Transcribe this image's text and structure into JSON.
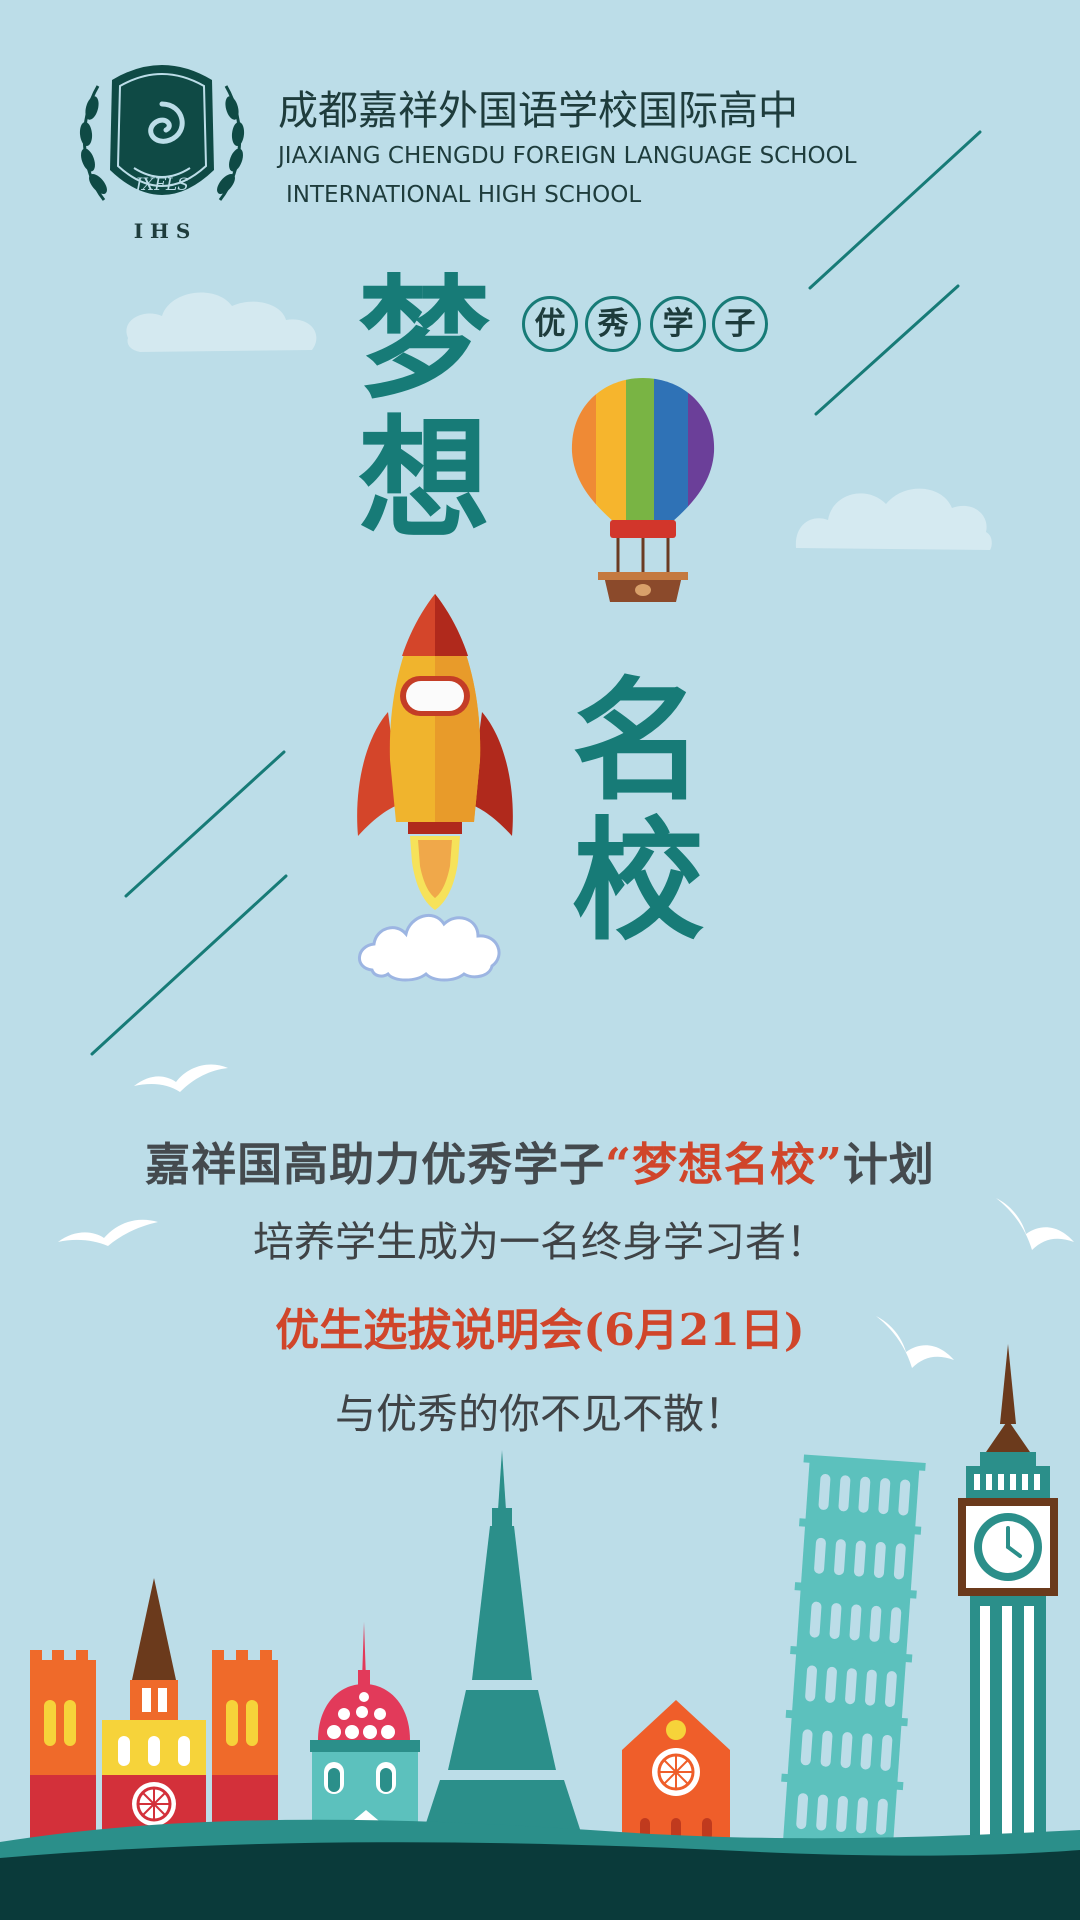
{
  "school": {
    "name_cn": "成都嘉祥外国语学校国际高中",
    "name_en_line1": "JIAXIANG CHENGDU FOREIGN LANGUAGE SCHOOL",
    "name_en_line2": "INTERNATIONAL HIGH SCHOOL",
    "logo_text": "JXFLS",
    "logo_sub": "I H S"
  },
  "hero": {
    "char_1": "梦",
    "char_2": "想",
    "char_3": "名",
    "char_4": "校",
    "badge_chars": [
      "优",
      "秀",
      "学",
      "子"
    ]
  },
  "text": {
    "plan_prefix": "嘉祥国高助力优秀学子",
    "plan_highlight": "“梦想名校”",
    "plan_suffix": "计划",
    "slogan": "培养学生成为一名终身学习者！",
    "event": "优生选拔说明会(6月21日)",
    "invite": "与优秀的你不见不散！"
  },
  "colors": {
    "background": "#bcdde8",
    "teal": "#177b77",
    "highlight_red": "#d0452a",
    "dark_ground": "#0a3a3a"
  },
  "icons": [
    "school-crest-icon",
    "hot-air-balloon-icon",
    "rocket-icon",
    "cloud-icon",
    "seagull-icon",
    "city-skyline-icon"
  ]
}
